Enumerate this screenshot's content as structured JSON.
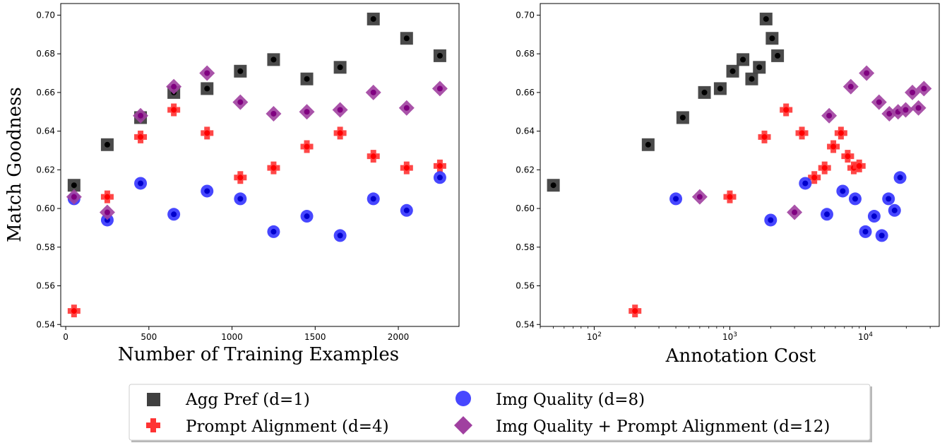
{
  "chart_data": [
    {
      "type": "scatter",
      "xlabel": "Number of Training Examples",
      "ylabel": "Match Goodness",
      "xscale": "linear",
      "xlim": [
        -30,
        2365
      ],
      "ylim": [
        0.539,
        0.706
      ],
      "xticks": [
        0,
        500,
        1000,
        1500,
        2000
      ],
      "xtick_labels": [
        "0",
        "500",
        "1000",
        "1500",
        "2000"
      ],
      "yticks": [
        0.54,
        0.56,
        0.58,
        0.6,
        0.62,
        0.64,
        0.66,
        0.68,
        0.7
      ],
      "ytick_labels": [
        "0.54",
        "0.56",
        "0.58",
        "0.60",
        "0.62",
        "0.64",
        "0.66",
        "0.68",
        "0.70"
      ],
      "grid": false,
      "series": [
        {
          "key": "agg",
          "x": [
            50,
            250,
            450,
            650,
            850,
            1050,
            1250,
            1450,
            1650,
            1850,
            2050,
            2250
          ],
          "y": [
            0.612,
            0.633,
            0.647,
            0.66,
            0.662,
            0.671,
            0.677,
            0.667,
            0.673,
            0.698,
            0.688,
            0.679
          ]
        },
        {
          "key": "prompt",
          "x": [
            50,
            250,
            450,
            650,
            850,
            1050,
            1250,
            1450,
            1650,
            1850,
            2050,
            2250
          ],
          "y": [
            0.547,
            0.606,
            0.637,
            0.651,
            0.639,
            0.616,
            0.621,
            0.632,
            0.639,
            0.627,
            0.621,
            0.622
          ]
        },
        {
          "key": "img",
          "x": [
            50,
            250,
            450,
            650,
            850,
            1050,
            1250,
            1450,
            1650,
            1850,
            2050,
            2250
          ],
          "y": [
            0.605,
            0.594,
            0.613,
            0.597,
            0.609,
            0.605,
            0.588,
            0.596,
            0.586,
            0.605,
            0.599,
            0.616
          ]
        },
        {
          "key": "both",
          "x": [
            50,
            250,
            450,
            650,
            850,
            1050,
            1250,
            1450,
            1650,
            1850,
            2050,
            2250
          ],
          "y": [
            0.606,
            0.598,
            0.648,
            0.663,
            0.67,
            0.655,
            0.649,
            0.65,
            0.651,
            0.66,
            0.652,
            0.662
          ]
        }
      ]
    },
    {
      "type": "scatter",
      "xlabel": "Annotation Cost",
      "ylabel": "",
      "xscale": "log",
      "xlim": [
        40,
        35000
      ],
      "ylim": [
        0.539,
        0.706
      ],
      "xticks": [
        100,
        1000,
        10000
      ],
      "xtick_labels": [
        "10^2",
        "10^3",
        "10^4"
      ],
      "yticks": [
        0.54,
        0.56,
        0.58,
        0.6,
        0.62,
        0.64,
        0.66,
        0.68,
        0.7
      ],
      "ytick_labels": [
        "0.54",
        "0.56",
        "0.58",
        "0.60",
        "0.62",
        "0.64",
        "0.66",
        "0.68",
        "0.70"
      ],
      "grid": false,
      "series": [
        {
          "key": "agg",
          "x": [
            50,
            250,
            450,
            650,
            850,
            1050,
            1250,
            1450,
            1650,
            1850,
            2050,
            2250
          ],
          "y": [
            0.612,
            0.633,
            0.647,
            0.66,
            0.662,
            0.671,
            0.677,
            0.667,
            0.673,
            0.698,
            0.688,
            0.679
          ]
        },
        {
          "key": "prompt",
          "x": [
            200,
            1000,
            1800,
            2600,
            3400,
            4200,
            5000,
            5800,
            6600,
            7400,
            8200,
            9000
          ],
          "y": [
            0.547,
            0.606,
            0.637,
            0.651,
            0.639,
            0.616,
            0.621,
            0.632,
            0.639,
            0.627,
            0.621,
            0.622
          ]
        },
        {
          "key": "img",
          "x": [
            400,
            2000,
            3600,
            5200,
            6800,
            8400,
            10000,
            11600,
            13200,
            14800,
            16400,
            18000
          ],
          "y": [
            0.605,
            0.594,
            0.613,
            0.597,
            0.609,
            0.605,
            0.588,
            0.596,
            0.586,
            0.605,
            0.599,
            0.616
          ]
        },
        {
          "key": "both",
          "x": [
            600,
            3000,
            5400,
            7800,
            10200,
            12600,
            15000,
            17400,
            19800,
            22200,
            24600,
            27000
          ],
          "y": [
            0.606,
            0.598,
            0.648,
            0.663,
            0.67,
            0.655,
            0.649,
            0.65,
            0.651,
            0.66,
            0.652,
            0.662
          ]
        }
      ]
    }
  ],
  "legend": {
    "placement": "bottom-center",
    "entries": [
      {
        "key": "agg",
        "label": "Agg Pref (d=1)",
        "marker": "square-icon",
        "color": "#404040"
      },
      {
        "key": "prompt",
        "label": "Prompt Alignment (d=4)",
        "marker": "plus-icon",
        "color": "#ff3333"
      },
      {
        "key": "img",
        "label": "Img Quality (d=8)",
        "marker": "circle-icon",
        "color": "#3333ff"
      },
      {
        "key": "both",
        "label": "Img Quality + Prompt Alignment (d=12)",
        "marker": "diamond-icon",
        "color": "#a040a0"
      }
    ]
  },
  "styles": {
    "agg": {
      "marker": "square",
      "fill": "#404040",
      "inner": "#000000"
    },
    "prompt": {
      "marker": "plus",
      "fill": "#ff3333",
      "inner": "#ff0000"
    },
    "img": {
      "marker": "circle",
      "fill": "#3333ff",
      "inner": "#0000cc"
    },
    "both": {
      "marker": "diamond",
      "fill": "#a040a0",
      "inner": "#800080"
    }
  }
}
